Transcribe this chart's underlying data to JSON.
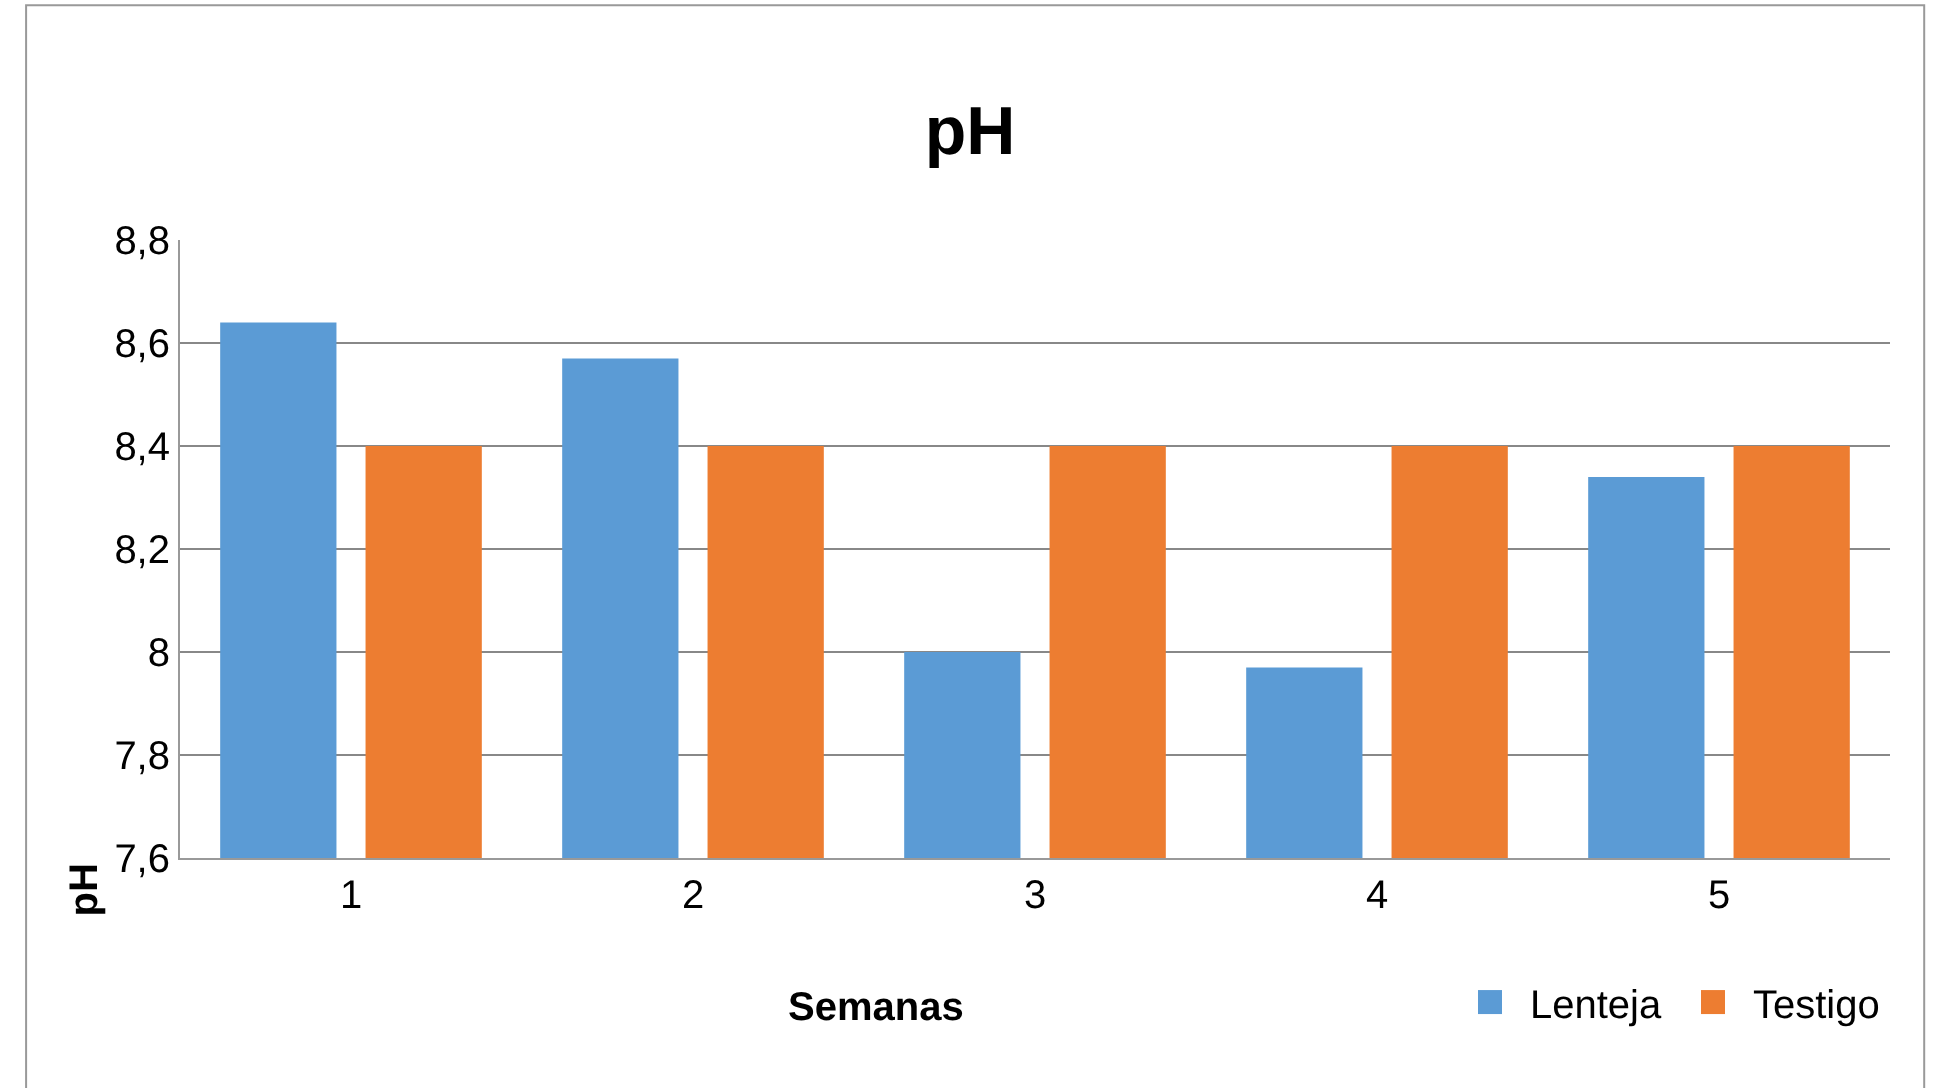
{
  "chart_data": {
    "type": "bar",
    "title": "pH",
    "xlabel": "Semanas",
    "ylabel": "pH",
    "categories": [
      "1",
      "2",
      "3",
      "4",
      "5"
    ],
    "series": [
      {
        "name": "Lenteja",
        "color": "#5b9bd5",
        "values": [
          8.64,
          8.57,
          8.0,
          7.97,
          8.34
        ]
      },
      {
        "name": "Testigo",
        "color": "#ed7d31",
        "values": [
          8.4,
          8.4,
          8.4,
          8.4,
          8.4
        ]
      }
    ],
    "ylim": [
      7.6,
      8.8
    ],
    "yticks": [
      {
        "value": 7.6,
        "label": "7,6"
      },
      {
        "value": 7.8,
        "label": "7,8"
      },
      8,
      {
        "value": 8.2,
        "label": "8,2"
      },
      {
        "value": 8.4,
        "label": "8,4"
      },
      {
        "value": 8.6,
        "label": "8,6"
      },
      {
        "value": 8.8,
        "label": "8,8"
      }
    ],
    "grid": "y",
    "legend": "bottom right"
  }
}
